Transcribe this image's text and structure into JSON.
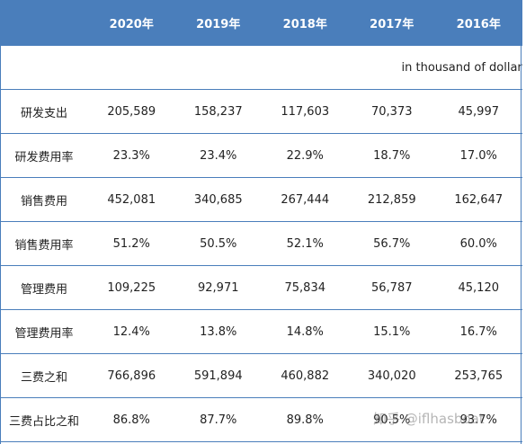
{
  "table": {
    "headers": [
      "",
      "2020年",
      "2019年",
      "2018年",
      "2017年",
      "2016年"
    ],
    "unit_note": "in thousand of dollar",
    "rows": [
      {
        "label": "研发支出",
        "values": [
          "205,589",
          "158,237",
          "117,603",
          "70,373",
          "45,997"
        ]
      },
      {
        "label": "研发费用率",
        "values": [
          "23.3%",
          "23.4%",
          "22.9%",
          "18.7%",
          "17.0%"
        ]
      },
      {
        "label": "销售费用",
        "values": [
          "452,081",
          "340,685",
          "267,444",
          "212,859",
          "162,647"
        ]
      },
      {
        "label": "销售费用率",
        "values": [
          "51.2%",
          "50.5%",
          "52.1%",
          "56.7%",
          "60.0%"
        ]
      },
      {
        "label": "管理费用",
        "values": [
          "109,225",
          "92,971",
          "75,834",
          "56,787",
          "45,120"
        ]
      },
      {
        "label": "管理费用率",
        "values": [
          "12.4%",
          "13.8%",
          "14.8%",
          "15.1%",
          "16.7%"
        ]
      },
      {
        "label": "三费之和",
        "values": [
          "766,896",
          "591,894",
          "460,882",
          "340,020",
          "253,765"
        ]
      },
      {
        "label": "三费占比之和",
        "values": [
          "86.8%",
          "87.7%",
          "89.8%",
          "90.5%",
          "93.7%"
        ]
      }
    ]
  },
  "watermark": "知乎 @iflhasboat",
  "colors": {
    "header_bg": "#4a7ebb",
    "header_text": "#ffffff",
    "border": "#4a7ebb"
  }
}
